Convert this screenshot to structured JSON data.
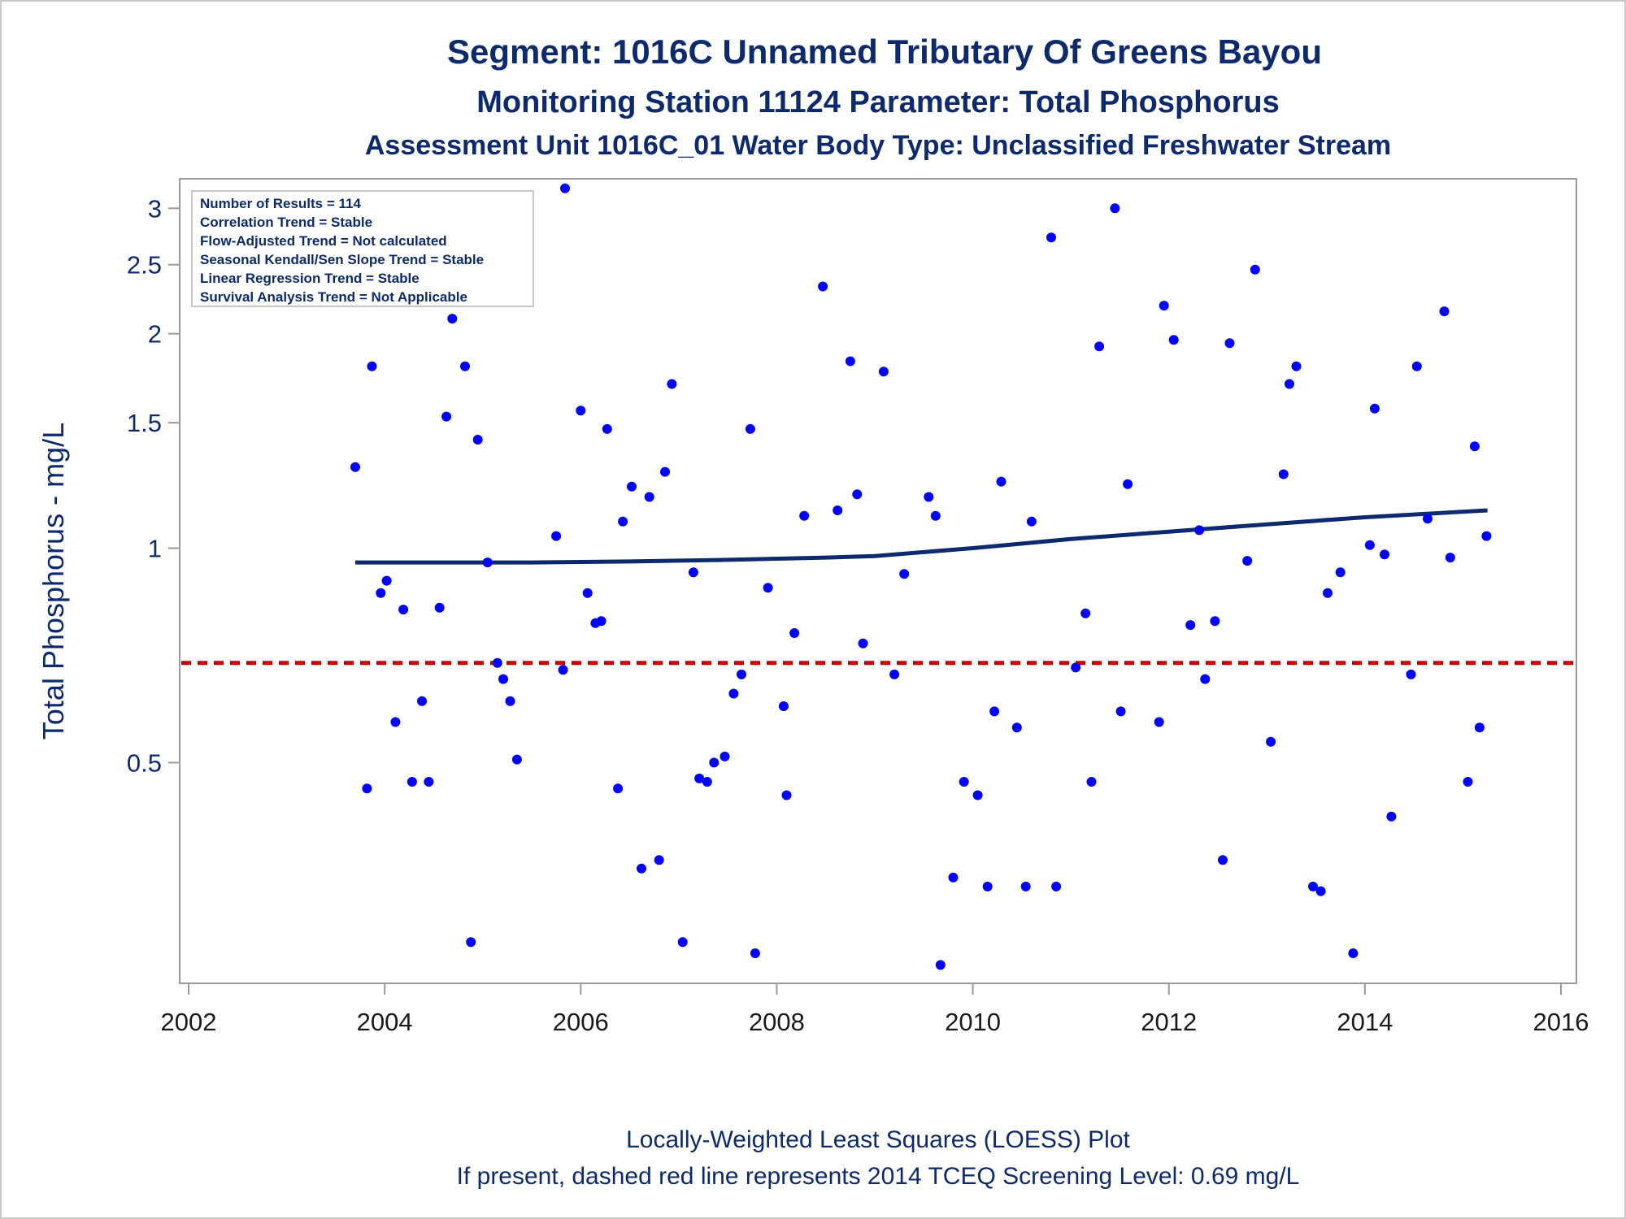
{
  "chart_data": {
    "type": "scatter",
    "title": "Segment: 1016C  Unnamed Tributary Of Greens Bayou",
    "subtitle": "Monitoring Station 11124 Parameter: Total Phosphorus",
    "subtitle2": "Assessment Unit 1016C_01   Water Body Type: Unclassified Freshwater Stream",
    "ylabel": "Total Phosphorus - mg/L",
    "y_scale": "log",
    "xlim": [
      2002,
      2016
    ],
    "ylim": [
      0.245,
      3.3
    ],
    "x_ticks": [
      2002,
      2004,
      2006,
      2008,
      2010,
      2012,
      2014,
      2016
    ],
    "y_ticks": [
      0.5,
      1,
      1.5,
      2,
      2.5,
      3
    ],
    "inset_lines": [
      "Number of Results = 114",
      "Correlation Trend = Stable",
      "Flow-Adjusted Trend = Not calculated",
      "Seasonal Kendall/Sen Slope Trend = Stable",
      "Linear Regression Trend = Stable",
      "Survival Analysis Trend = Not Applicable"
    ],
    "footnote1": "Locally-Weighted Least Squares (LOESS) Plot",
    "footnote2": "If present, dashed red line represents 2014 TCEQ Screening Level: 0.69 mg/L",
    "screening_level": 0.69,
    "colors": {
      "points": "#0000ff",
      "loess": "#0d2a6e",
      "screening": "#cc0000",
      "text": "#0d2a6e"
    },
    "loess": {
      "x": [
        2003.7,
        2004.5,
        2005.5,
        2006.5,
        2007.5,
        2008.5,
        2009.0,
        2010.0,
        2011.0,
        2012.0,
        2013.0,
        2014.0,
        2015.25
      ],
      "y": [
        0.955,
        0.955,
        0.955,
        0.958,
        0.963,
        0.97,
        0.975,
        1.0,
        1.03,
        1.055,
        1.08,
        1.105,
        1.13
      ]
    },
    "series": [
      {
        "x": [
          2003.7,
          2003.82,
          2003.87,
          2003.96,
          2004.02,
          2004.11,
          2004.19,
          2004.28,
          2004.38,
          2004.45,
          2004.56,
          2004.63,
          2004.69,
          2004.82,
          2004.88,
          2004.95,
          2005.05,
          2005.15,
          2005.21,
          2005.28,
          2005.35,
          2005.75,
          2005.82,
          2005.84,
          2006.0,
          2006.07,
          2006.15,
          2006.21,
          2006.27,
          2006.38,
          2006.43,
          2006.52,
          2006.62,
          2006.7,
          2006.8,
          2006.86,
          2006.93,
          2007.04,
          2007.15,
          2007.21,
          2007.29,
          2007.36,
          2007.47,
          2007.56,
          2007.64,
          2007.73,
          2007.78,
          2007.91,
          2008.07,
          2008.1,
          2008.18,
          2008.28,
          2008.47,
          2008.62,
          2008.75,
          2008.82,
          2008.88,
          2009.09,
          2009.2,
          2009.3,
          2009.55,
          2009.62,
          2009.67,
          2009.8,
          2009.91,
          2010.05,
          2010.15,
          2010.22,
          2010.29,
          2010.45,
          2010.54,
          2010.6,
          2010.8,
          2010.85,
          2011.05,
          2011.15,
          2011.21,
          2011.29,
          2011.45,
          2011.51,
          2011.58,
          2011.9,
          2011.95,
          2012.05,
          2012.22,
          2012.31,
          2012.37,
          2012.47,
          2012.55,
          2012.62,
          2012.8,
          2012.88,
          2013.04,
          2013.17,
          2013.23,
          2013.3,
          2013.47,
          2013.55,
          2013.62,
          2013.75,
          2013.88,
          2014.05,
          2014.1,
          2014.2,
          2014.27,
          2014.47,
          2014.53,
          2014.64,
          2014.81,
          2014.87,
          2015.05,
          2015.12,
          2015.17,
          2015.24
        ],
        "y": [
          1.3,
          0.46,
          1.8,
          0.865,
          0.9,
          0.57,
          0.82,
          0.47,
          0.61,
          0.47,
          0.825,
          1.53,
          2.1,
          1.8,
          0.28,
          1.42,
          0.955,
          0.69,
          0.655,
          0.61,
          0.505,
          1.04,
          0.675,
          3.2,
          1.56,
          0.865,
          0.785,
          0.79,
          1.47,
          0.46,
          1.09,
          1.22,
          0.355,
          1.18,
          0.365,
          1.28,
          1.7,
          0.28,
          0.925,
          0.475,
          0.47,
          0.5,
          0.51,
          0.625,
          0.665,
          1.47,
          0.27,
          0.88,
          0.6,
          0.45,
          0.76,
          1.11,
          2.33,
          1.13,
          1.83,
          1.19,
          0.735,
          1.77,
          0.665,
          0.92,
          1.18,
          1.11,
          0.26,
          0.345,
          0.47,
          0.45,
          0.335,
          0.59,
          1.24,
          0.56,
          0.335,
          1.09,
          2.73,
          0.335,
          0.68,
          0.81,
          0.47,
          1.92,
          3.0,
          0.59,
          1.23,
          0.57,
          2.19,
          1.96,
          0.78,
          1.06,
          0.655,
          0.79,
          0.365,
          1.94,
          0.96,
          2.46,
          0.535,
          1.27,
          1.7,
          1.8,
          0.335,
          0.33,
          0.865,
          0.925,
          0.27,
          1.01,
          1.57,
          0.98,
          0.42,
          0.665,
          1.8,
          1.1,
          2.15,
          0.97,
          0.47,
          1.39,
          0.56,
          1.04
        ]
      }
    ]
  }
}
